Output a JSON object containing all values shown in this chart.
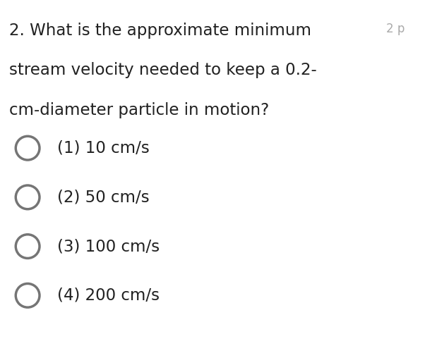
{
  "background_color": "#ffffff",
  "question_line1": "2. What is the approximate minimum",
  "question_line2": "stream velocity needed to keep a 0.2-",
  "question_line3": "cm-diameter particle in motion?",
  "points_label": "2 p",
  "options": [
    "(1) 10 cm/s",
    "(2) 50 cm/s",
    "(3) 100 cm/s",
    "(4) 200 cm/s"
  ],
  "text_color": "#212121",
  "circle_edge_color": "#757575",
  "question_fontsize": 16.5,
  "option_fontsize": 16.5,
  "points_fontsize": 12,
  "fig_width": 6.02,
  "fig_height": 4.91,
  "dpi": 100
}
